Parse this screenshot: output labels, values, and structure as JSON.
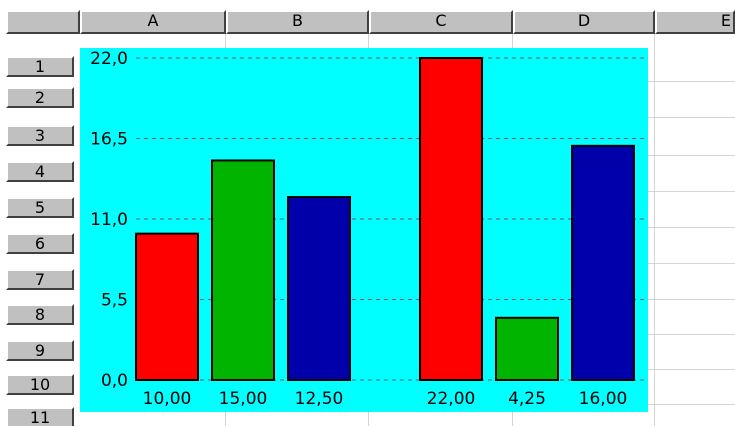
{
  "spreadsheet": {
    "columns": [
      "A",
      "B",
      "C",
      "D",
      "E"
    ],
    "rows": [
      "1",
      "2",
      "3",
      "4",
      "5",
      "6",
      "7",
      "8",
      "9",
      "10",
      "11"
    ]
  },
  "chart_data": {
    "type": "bar",
    "categories": [
      "10,00",
      "15,00",
      "12,50",
      "22,00",
      "4,25",
      "16,00"
    ],
    "values": [
      10.0,
      15.0,
      12.5,
      22.0,
      4.25,
      16.0
    ],
    "bar_colors": [
      "#ff0000",
      "#00b400",
      "#0000aa",
      "#ff0000",
      "#00b400",
      "#0000aa"
    ],
    "ylim": [
      0,
      22
    ],
    "yticks": [
      0,
      5.5,
      11,
      16.5,
      22
    ],
    "ytick_labels": [
      "0,0",
      "5,5",
      "11,0",
      "16,5",
      "22,0"
    ],
    "grid": true,
    "background": "#00ffff",
    "title": "",
    "xlabel": "",
    "ylabel": ""
  }
}
